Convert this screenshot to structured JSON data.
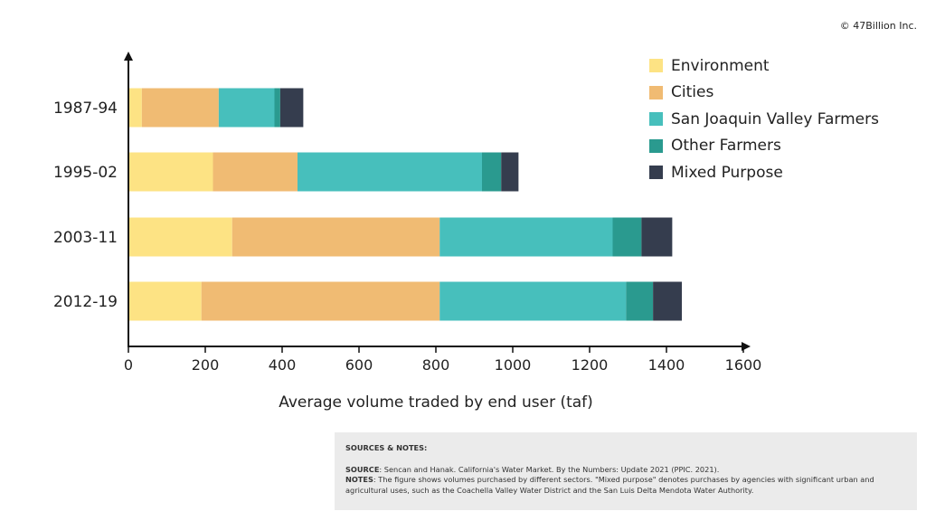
{
  "copyright": "© 47Billion Inc.",
  "chart_data": {
    "type": "bar",
    "orientation": "horizontal",
    "stacked": true,
    "categories": [
      "1987-94",
      "1995-02",
      "2003-11",
      "2012-19"
    ],
    "series": [
      {
        "name": "Environment",
        "color": "#fde384",
        "values": [
          35,
          220,
          270,
          190
        ]
      },
      {
        "name": "Cities",
        "color": "#f0bb73",
        "values": [
          200,
          220,
          540,
          620
        ]
      },
      {
        "name": "San Joaquin Valley Farmers",
        "color": "#47bfbc",
        "values": [
          145,
          480,
          450,
          485
        ]
      },
      {
        "name": "Other Farmers",
        "color": "#2a9a8f",
        "values": [
          15,
          50,
          75,
          70
        ]
      },
      {
        "name": "Mixed Purpose",
        "color": "#353d4e",
        "values": [
          60,
          45,
          80,
          75
        ]
      }
    ],
    "xlabel": "Average volume traded by end user (taf)",
    "ylabel": "",
    "xlim": [
      0,
      1600
    ],
    "xticks": [
      0,
      200,
      400,
      600,
      800,
      1000,
      1200,
      1400,
      1600
    ],
    "grid": false,
    "legend_position": "top-right"
  },
  "notes": {
    "title": "SOURCES & NOTES:",
    "source_label": "SOURCE",
    "source_text": ": Sencan and Hanak. California's Water Market. By the Numbers: Update 2021 (PPIC. 2021).",
    "notes_label": "NOTES",
    "notes_text": ": The figure shows volumes purchased by different sectors. \"Mixed purpose\" denotes purchases by agencies with significant urban and agricultural uses, such as the Coachella Valley Water District and the San Luis Delta Mendota Water Authority."
  }
}
